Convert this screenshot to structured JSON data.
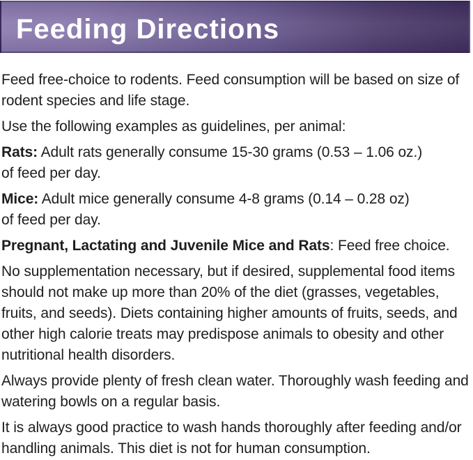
{
  "header": {
    "title": "Feeding Directions"
  },
  "content": {
    "intro": {
      "line1": "Feed free-choice to rodents. Feed consumption will be based on size of",
      "line2": "rodent species and life stage."
    },
    "guidelines": {
      "line1": "Use the following examples as guidelines, per animal:"
    },
    "rats": {
      "label": "Rats:",
      "line1_rest": " Adult rats generally consume 15-30 grams (0.53 – 1.06 oz.)",
      "line2": "of feed per day."
    },
    "mice": {
      "label": "Mice:",
      "line1_rest": " Adult mice generally consume 4-8 grams (0.14 – 0.28 oz)",
      "line2": "of feed per day."
    },
    "special": {
      "label": "Pregnant, Lactating and Juvenile Mice and Rats",
      "rest": ": Feed free choice."
    },
    "supplementation": {
      "line1": "No supplementation necessary, but if desired, supplemental food items",
      "line2": "should not make up more than 20% of the diet (grasses, vegetables,",
      "line3": "fruits, and seeds). Diets containing higher amounts of fruits, seeds, and",
      "line4": "other high calorie treats may predispose animals to obesity and other",
      "line5": "nutritional health disorders."
    },
    "water": {
      "line1": "Always provide plenty of fresh clean water. Thoroughly wash feeding and",
      "line2": "watering bowls on a regular basis."
    },
    "hygiene": {
      "line1": "It is always good practice to wash hands thoroughly after feeding and/or",
      "line2": "handling animals. This diet is not for human consumption."
    }
  },
  "colors": {
    "banner_gradient_left": "#8c7cb0",
    "banner_gradient_mid": "#6c5d92",
    "banner_gradient_right": "#41305f",
    "banner_border": "#53416f",
    "title_text": "#ffffff",
    "body_text": "#1e1e1e",
    "background": "#ffffff"
  }
}
